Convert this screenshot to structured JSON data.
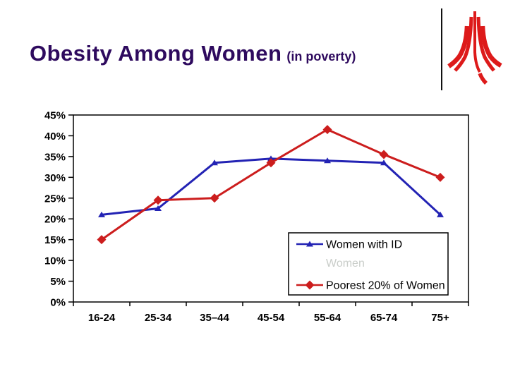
{
  "slide": {
    "title": "Obesity Among Women",
    "title_suffix": "(in poverty)",
    "title_color": "#2e0a5e",
    "logo_color": "#dd1a1a"
  },
  "chart_data": {
    "type": "line",
    "title": "",
    "xlabel": "",
    "ylabel": "",
    "categories": [
      "16-24",
      "25-34",
      "35–44",
      "45-54",
      "55-64",
      "65-74",
      "75+"
    ],
    "series": [
      {
        "name": "Women with ID",
        "color": "#2323b4",
        "marker": "triangle",
        "values": [
          21,
          22.5,
          33.5,
          34.5,
          34,
          33.5,
          21
        ]
      },
      {
        "name": "Poorest 20% of Women",
        "color": "#cc1d1d",
        "marker": "diamond",
        "values": [
          15,
          24.5,
          25,
          33.5,
          41.5,
          35.5,
          30
        ]
      }
    ],
    "ghost_legend_entry": "Women",
    "ylim": [
      0,
      45
    ],
    "ytick_step": 5,
    "yticks": [
      "0%",
      "5%",
      "10%",
      "15%",
      "20%",
      "25%",
      "30%",
      "35%",
      "40%",
      "45%"
    ],
    "legend_position": "inside-bottom-right",
    "grid": false
  }
}
